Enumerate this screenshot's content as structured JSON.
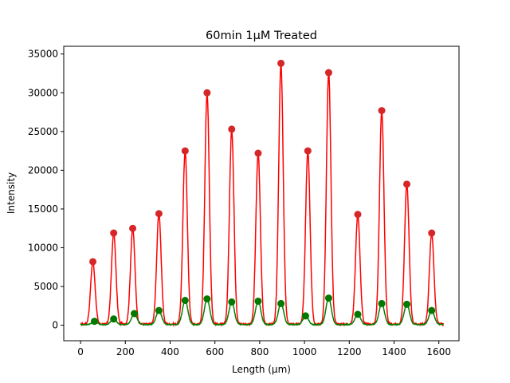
{
  "chart_data": {
    "type": "line",
    "title": "60min 1μM Treated",
    "xlabel": "Length (μm)",
    "ylabel": "Intensity",
    "xlim": [
      -75,
      1690
    ],
    "ylim": [
      -2000,
      36000
    ],
    "xticks": [
      0,
      200,
      400,
      600,
      800,
      1000,
      1200,
      1400,
      1600
    ],
    "yticks": [
      0,
      5000,
      10000,
      15000,
      20000,
      25000,
      30000,
      35000
    ],
    "grid": false,
    "colors": {
      "red": "#ff0000",
      "green": "#008000",
      "red_marker": "#d62728",
      "green_marker": "#007a00"
    },
    "series": [
      {
        "color": "red",
        "peaks": [
          {
            "x": 55,
            "y": 8200
          },
          {
            "x": 148,
            "y": 11900
          },
          {
            "x": 233,
            "y": 12500
          },
          {
            "x": 350,
            "y": 14400
          },
          {
            "x": 467,
            "y": 22500
          },
          {
            "x": 565,
            "y": 30000
          },
          {
            "x": 675,
            "y": 25300
          },
          {
            "x": 793,
            "y": 22200
          },
          {
            "x": 895,
            "y": 33800
          },
          {
            "x": 1015,
            "y": 22500
          },
          {
            "x": 1108,
            "y": 32600
          },
          {
            "x": 1238,
            "y": 14300
          },
          {
            "x": 1345,
            "y": 27700
          },
          {
            "x": 1457,
            "y": 18200
          },
          {
            "x": 1568,
            "y": 11900
          }
        ]
      },
      {
        "color": "green",
        "peaks": [
          {
            "x": 62,
            "y": 500
          },
          {
            "x": 148,
            "y": 800
          },
          {
            "x": 240,
            "y": 1500
          },
          {
            "x": 350,
            "y": 1900
          },
          {
            "x": 467,
            "y": 3200
          },
          {
            "x": 565,
            "y": 3400
          },
          {
            "x": 675,
            "y": 3000
          },
          {
            "x": 793,
            "y": 3100
          },
          {
            "x": 895,
            "y": 2800
          },
          {
            "x": 1005,
            "y": 1200
          },
          {
            "x": 1108,
            "y": 3500
          },
          {
            "x": 1238,
            "y": 1400
          },
          {
            "x": 1345,
            "y": 2800
          },
          {
            "x": 1457,
            "y": 2700
          },
          {
            "x": 1568,
            "y": 1900
          }
        ]
      }
    ]
  }
}
